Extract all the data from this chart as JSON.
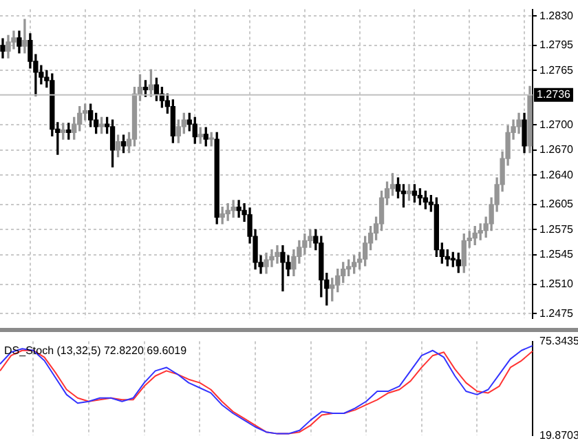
{
  "chart_data": [
    {
      "type": "candlestick",
      "grid": true,
      "tick_labels": "y",
      "colors": [
        "#000000",
        "#959595",
        "#959595",
        "#000000",
        "#959595",
        "#000000",
        "#000000",
        "#000000",
        "#000000",
        "#000000",
        "#000000",
        "#959595",
        "#000000",
        "#959595",
        "#959595",
        "#959595",
        "#000000",
        "#000000",
        "#959595",
        "#000000",
        "#000000",
        "#959595",
        "#000000",
        "#959595",
        "#959595",
        "#959595",
        "#000000",
        "#959595",
        "#000000",
        "#000000",
        "#000000",
        "#000000",
        "#959595",
        "#959595",
        "#000000",
        "#000000",
        "#959595",
        "#000000",
        "#959595",
        "#000000",
        "#959595",
        "#959595",
        "#959595",
        "#000000",
        "#000000",
        "#000000",
        "#000000",
        "#000000",
        "#959595",
        "#959595",
        "#959595",
        "#000000",
        "#000000",
        "#959595",
        "#959595",
        "#959595",
        "#959595",
        "#000000",
        "#000000",
        "#000000",
        "#959595",
        "#959595",
        "#959595",
        "#959595",
        "#959595",
        "#959595",
        "#959595",
        "#959595",
        "#959595",
        "#959595",
        "#959595",
        "#959595",
        "#000000",
        "#000000",
        "#959595",
        "#000000",
        "#000000",
        "#000000",
        "#000000",
        "#000000",
        "#000000",
        "#000000",
        "#000000",
        "#000000",
        "#959595",
        "#959595",
        "#959595",
        "#959595",
        "#959595",
        "#959595",
        "#959595",
        "#959595",
        "#959595",
        "#959595",
        "#959595",
        "#000000",
        "#959595"
      ],
      "categories": [
        null,
        null,
        null,
        null,
        null,
        null,
        null,
        null,
        null,
        null,
        null,
        null,
        null,
        null,
        null,
        null,
        null,
        null,
        null,
        null,
        null,
        null,
        null,
        null,
        null,
        null,
        null,
        null,
        null,
        null,
        null,
        null,
        null,
        null,
        null,
        null,
        null,
        null,
        null,
        null,
        null,
        null,
        null,
        null,
        null,
        null,
        null,
        null,
        null,
        null,
        null,
        null,
        null,
        null,
        null,
        null,
        null,
        null,
        null,
        null,
        null,
        null,
        null,
        null,
        null,
        null,
        null,
        null,
        null,
        null,
        null,
        null,
        null,
        null,
        null,
        null,
        null,
        null,
        null,
        null,
        null,
        null,
        null,
        null,
        null,
        null,
        null,
        null,
        null,
        null,
        null,
        null,
        null,
        null,
        null,
        null,
        null
      ],
      "ohlc": [
        [
          1.2795,
          1.2803,
          1.278,
          1.2788
        ],
        [
          1.2788,
          1.2807,
          1.278,
          1.2799
        ],
        [
          1.2799,
          1.2812,
          1.2791,
          1.2804
        ],
        [
          1.2804,
          1.2812,
          1.2786,
          1.2794
        ],
        [
          1.2794,
          1.2826,
          1.2786,
          1.2801
        ],
        [
          1.2801,
          1.2809,
          1.2768,
          1.2776
        ],
        [
          1.2776,
          1.2784,
          1.2735,
          1.2763
        ],
        [
          1.2763,
          1.2771,
          1.2749,
          1.2757
        ],
        [
          1.2757,
          1.2765,
          1.2745,
          1.2753
        ],
        [
          1.2753,
          1.2761,
          1.2687,
          1.2695
        ],
        [
          1.2695,
          1.2703,
          1.2665,
          1.2691
        ],
        [
          1.2691,
          1.2702,
          1.2683,
          1.2694
        ],
        [
          1.2694,
          1.2702,
          1.2683,
          1.2691
        ],
        [
          1.2691,
          1.2709,
          1.2683,
          1.2701
        ],
        [
          1.2701,
          1.2722,
          1.2693,
          1.2714
        ],
        [
          1.2714,
          1.2725,
          1.2706,
          1.2717
        ],
        [
          1.2717,
          1.2725,
          1.2698,
          1.2706
        ],
        [
          1.2706,
          1.2714,
          1.269,
          1.2698
        ],
        [
          1.2698,
          1.2709,
          1.269,
          1.2701
        ],
        [
          1.2701,
          1.2709,
          1.269,
          1.2698
        ],
        [
          1.2698,
          1.2706,
          1.265,
          1.267
        ],
        [
          1.267,
          1.2688,
          1.2662,
          1.268
        ],
        [
          1.268,
          1.2688,
          1.2667,
          1.2675
        ],
        [
          1.2675,
          1.2691,
          1.2667,
          1.2683
        ],
        [
          1.2683,
          1.2745,
          1.2675,
          1.2737
        ],
        [
          1.2737,
          1.276,
          1.2729,
          1.2745
        ],
        [
          1.2745,
          1.2753,
          1.2734,
          1.2742
        ],
        [
          1.2742,
          1.2766,
          1.2734,
          1.2748
        ],
        [
          1.2748,
          1.2756,
          1.2729,
          1.2737
        ],
        [
          1.2737,
          1.2745,
          1.2721,
          1.2729
        ],
        [
          1.2729,
          1.2737,
          1.2714,
          1.2722
        ],
        [
          1.2722,
          1.273,
          1.2679,
          1.2687
        ],
        [
          1.2687,
          1.2706,
          1.2679,
          1.2698
        ],
        [
          1.2698,
          1.2714,
          1.269,
          1.2706
        ],
        [
          1.2706,
          1.2714,
          1.2693,
          1.2701
        ],
        [
          1.2701,
          1.2709,
          1.2678,
          1.2686
        ],
        [
          1.2686,
          1.2697,
          1.2678,
          1.2689
        ],
        [
          1.2689,
          1.2697,
          1.2675,
          1.2683
        ],
        [
          1.2683,
          1.2691,
          1.2675,
          1.2683
        ],
        [
          1.2683,
          1.2691,
          1.2582,
          1.259
        ],
        [
          1.259,
          1.2602,
          1.2582,
          1.2594
        ],
        [
          1.2594,
          1.2606,
          1.2586,
          1.2598
        ],
        [
          1.2598,
          1.261,
          1.259,
          1.2602
        ],
        [
          1.2602,
          1.261,
          1.259,
          1.2598
        ],
        [
          1.2598,
          1.2606,
          1.2585,
          1.2593
        ],
        [
          1.2593,
          1.2601,
          1.2559,
          1.2567
        ],
        [
          1.2567,
          1.2575,
          1.2528,
          1.2536
        ],
        [
          1.2536,
          1.2544,
          1.2523,
          1.2531
        ],
        [
          1.2531,
          1.2547,
          1.2523,
          1.2539
        ],
        [
          1.2539,
          1.2551,
          1.2531,
          1.2543
        ],
        [
          1.2543,
          1.2556,
          1.2535,
          1.2548
        ],
        [
          1.2548,
          1.2556,
          1.2502,
          1.2536
        ],
        [
          1.2536,
          1.2544,
          1.252,
          1.2528
        ],
        [
          1.2528,
          1.2551,
          1.252,
          1.2543
        ],
        [
          1.2543,
          1.2562,
          1.2535,
          1.2554
        ],
        [
          1.2554,
          1.257,
          1.2546,
          1.2562
        ],
        [
          1.2562,
          1.2575,
          1.2554,
          1.2567
        ],
        [
          1.2567,
          1.2575,
          1.2551,
          1.2559
        ],
        [
          1.2559,
          1.2567,
          1.2495,
          1.2515
        ],
        [
          1.2515,
          1.2523,
          1.2485,
          1.2505
        ],
        [
          1.2505,
          1.2517,
          1.249,
          1.2509
        ],
        [
          1.2509,
          1.2528,
          1.2501,
          1.252
        ],
        [
          1.252,
          1.2536,
          1.2512,
          1.2528
        ],
        [
          1.2528,
          1.2539,
          1.252,
          1.2531
        ],
        [
          1.2531,
          1.2544,
          1.2523,
          1.2536
        ],
        [
          1.2536,
          1.2548,
          1.2528,
          1.254
        ],
        [
          1.254,
          1.2567,
          1.2532,
          1.2559
        ],
        [
          1.2559,
          1.2579,
          1.2551,
          1.2571
        ],
        [
          1.2571,
          1.259,
          1.2563,
          1.2582
        ],
        [
          1.2582,
          1.2621,
          1.2574,
          1.2613
        ],
        [
          1.2613,
          1.2632,
          1.2605,
          1.2624
        ],
        [
          1.2624,
          1.2642,
          1.2616,
          1.2629
        ],
        [
          1.2629,
          1.2637,
          1.2613,
          1.2621
        ],
        [
          1.2621,
          1.2629,
          1.2602,
          1.2618
        ],
        [
          1.2618,
          1.2629,
          1.261,
          1.2621
        ],
        [
          1.2621,
          1.2629,
          1.2608,
          1.2616
        ],
        [
          1.2616,
          1.2624,
          1.2605,
          1.2613
        ],
        [
          1.2613,
          1.2621,
          1.26,
          1.2608
        ],
        [
          1.2608,
          1.2616,
          1.2597,
          1.2605
        ],
        [
          1.2605,
          1.2613,
          1.2543,
          1.2551
        ],
        [
          1.2551,
          1.2559,
          1.2535,
          1.2543
        ],
        [
          1.2543,
          1.2551,
          1.2532,
          1.254
        ],
        [
          1.254,
          1.2548,
          1.2531,
          1.2539
        ],
        [
          1.2539,
          1.2547,
          1.2524,
          1.2532
        ],
        [
          1.2532,
          1.257,
          1.2524,
          1.2562
        ],
        [
          1.2562,
          1.2573,
          1.2554,
          1.2565
        ],
        [
          1.2565,
          1.2579,
          1.2557,
          1.2571
        ],
        [
          1.2571,
          1.2582,
          1.2563,
          1.2574
        ],
        [
          1.2574,
          1.259,
          1.2566,
          1.2582
        ],
        [
          1.2582,
          1.2613,
          1.2574,
          1.2605
        ],
        [
          1.2605,
          1.2637,
          1.2597,
          1.2629
        ],
        [
          1.2629,
          1.2668,
          1.2621,
          1.266
        ],
        [
          1.266,
          1.2699,
          1.2652,
          1.2691
        ],
        [
          1.2691,
          1.2706,
          1.2683,
          1.2698
        ],
        [
          1.2698,
          1.2714,
          1.269,
          1.2706
        ],
        [
          1.2706,
          1.2714,
          1.2667,
          1.2675
        ],
        [
          1.2675,
          1.2746,
          1.2667,
          1.2736
        ]
      ],
      "ylim": [
        1.2469,
        1.2838
      ],
      "yticks": [
        {
          "value": 1.283,
          "label": "1.2830"
        },
        1.2795,
        1.2765,
        {
          "value": 1.27,
          "label": "1.2700"
        },
        {
          "value": 1.267,
          "label": "1.2670"
        },
        {
          "value": 1.264,
          "label": "1.2640"
        },
        1.2605,
        1.2575,
        1.2545,
        {
          "value": 1.251,
          "label": "1.2510"
        },
        1.2475
      ],
      "ref_lines": [
        {
          "axis": "y",
          "value": 1.2736,
          "label": "1.2736",
          "color": "#c0c0c0"
        }
      ]
    },
    {
      "type": "line",
      "title": "DS_Stoch (13,32,5) 72.8220 69.6019",
      "grid": "x",
      "tick_labels": "y",
      "ylim": [
        19.8703,
        75.3435
      ],
      "yticks": [
        75.3435,
        19.8703
      ],
      "categories": [
        null,
        null,
        null,
        null,
        null,
        null,
        null,
        null,
        null,
        null,
        null,
        null,
        null,
        null,
        null,
        null,
        null,
        null,
        null,
        null,
        null,
        null,
        null,
        null,
        null,
        null,
        null,
        null,
        null,
        null,
        null,
        null,
        null,
        null,
        null,
        null,
        null,
        null,
        null,
        null,
        null,
        null,
        null,
        null,
        null,
        null,
        null,
        null,
        null
      ],
      "series": [
        {
          "color": "#3333ff",
          "values": [
            62,
            69,
            71,
            70,
            64,
            54,
            44,
            39,
            40,
            42,
            42,
            40,
            42,
            51,
            58,
            60,
            56,
            51,
            48,
            45,
            38,
            33,
            29,
            25,
            22,
            21,
            21,
            23,
            29,
            34,
            33,
            33,
            36,
            40,
            46,
            46,
            49,
            58,
            67,
            70,
            66,
            55,
            46,
            44,
            47,
            56,
            65,
            70,
            72.822
          ]
        },
        {
          "color": "#ff3333",
          "values": [
            58,
            67,
            70,
            70,
            66,
            57,
            47,
            42,
            40,
            41,
            42,
            41,
            41,
            49,
            55,
            58,
            56,
            53,
            51,
            47,
            40,
            34,
            30,
            26,
            22,
            21,
            21,
            22,
            26,
            32,
            33,
            33,
            35,
            38,
            41,
            45,
            47,
            52,
            60,
            67,
            69,
            59,
            51,
            46,
            45,
            49,
            60,
            64,
            69.6019
          ]
        }
      ]
    }
  ]
}
